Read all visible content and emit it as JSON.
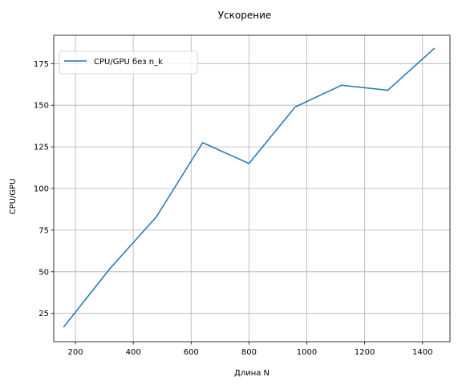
{
  "chart_data": {
    "type": "line",
    "title": "Ускорение",
    "xlabel": "Длина N",
    "ylabel": "CPU/GPU",
    "xlim": [
      125,
      1495
    ],
    "ylim": [
      8,
      192
    ],
    "xticks": [
      200,
      400,
      600,
      800,
      1000,
      1200,
      1400
    ],
    "yticks": [
      25,
      50,
      75,
      100,
      125,
      150,
      175
    ],
    "grid": true,
    "legend_position": "top-left",
    "series": [
      {
        "name": "CPU/GPU без n_k",
        "color": "#1f77b4",
        "x": [
          160,
          320,
          480,
          640,
          800,
          960,
          1120,
          1280,
          1440
        ],
        "y": [
          17,
          52,
          83,
          127.5,
          115,
          149,
          162,
          159,
          184
        ]
      }
    ]
  }
}
